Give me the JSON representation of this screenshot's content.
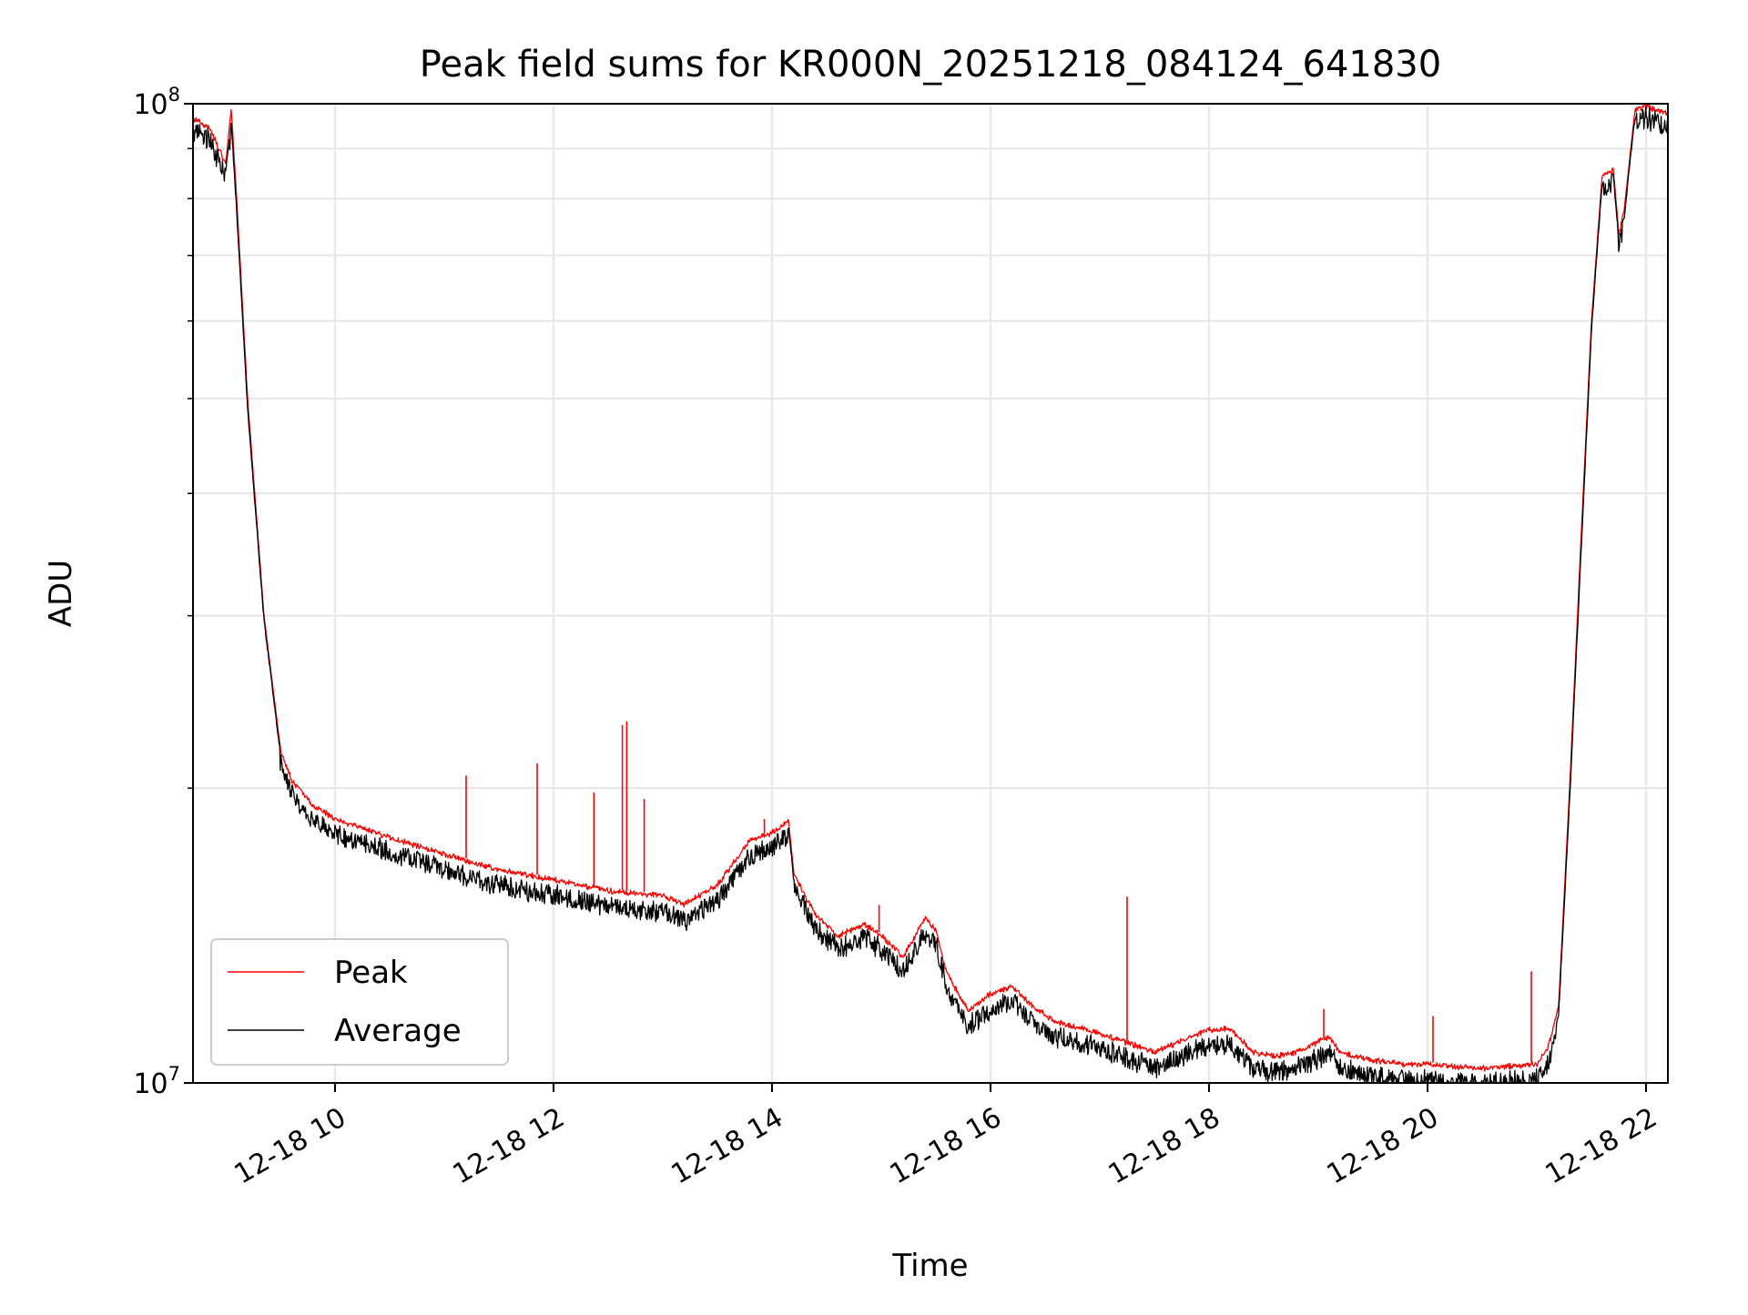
{
  "chart_data": {
    "type": "line",
    "title": "Peak field sums for KR000N_20251218_084124_641830",
    "xlabel": "Time",
    "ylabel": "ADU",
    "y_scale": "log",
    "ylim": [
      10000000,
      100000000
    ],
    "xlim_hours": [
      8.7,
      22.2
    ],
    "grid": true,
    "legend_position": "lower-left",
    "x_ticks": [
      {
        "hour": 10,
        "label": "12-18 10"
      },
      {
        "hour": 12,
        "label": "12-18 12"
      },
      {
        "hour": 14,
        "label": "12-18 14"
      },
      {
        "hour": 16,
        "label": "12-18 16"
      },
      {
        "hour": 18,
        "label": "12-18 18"
      },
      {
        "hour": 20,
        "label": "12-18 20"
      },
      {
        "hour": 22,
        "label": "12-18 22"
      }
    ],
    "y_ticks": [
      {
        "value": 10000000,
        "base": "10",
        "exp": "7"
      },
      {
        "value": 100000000,
        "base": "10",
        "exp": "8"
      }
    ],
    "y_minor_ticks": [
      20000000,
      30000000,
      40000000,
      50000000,
      60000000,
      70000000,
      80000000,
      90000000
    ],
    "series": [
      {
        "name": "Peak",
        "color": "#ff0000",
        "x": [
          8.7,
          8.85,
          9.0,
          9.05,
          9.1,
          9.2,
          9.35,
          9.5,
          9.6,
          9.8,
          10.0,
          10.5,
          11.0,
          11.5,
          12.0,
          12.5,
          13.0,
          13.2,
          13.5,
          13.8,
          14.0,
          14.15,
          14.2,
          14.4,
          14.6,
          14.85,
          15.0,
          15.2,
          15.4,
          15.5,
          15.6,
          15.8,
          16.0,
          16.2,
          16.4,
          16.6,
          17.0,
          17.5,
          18.0,
          18.2,
          18.4,
          18.6,
          18.8,
          19.1,
          19.2,
          19.5,
          19.8,
          20.0,
          20.5,
          21.0,
          21.1,
          21.2,
          21.3,
          21.4,
          21.5,
          21.6,
          21.7,
          21.75,
          21.8,
          21.9,
          22.0,
          22.2
        ],
        "values": [
          97000000,
          95000000,
          87000000,
          99000000,
          80000000,
          50000000,
          30000000,
          22000000,
          20500000,
          19300000,
          18700000,
          17900000,
          17200000,
          16600000,
          16200000,
          15800000,
          15600000,
          15300000,
          16000000,
          17800000,
          18100000,
          18600000,
          16400000,
          14900000,
          14200000,
          14600000,
          14200000,
          13500000,
          14800000,
          14400000,
          13000000,
          11900000,
          12400000,
          12600000,
          12000000,
          11600000,
          11300000,
          10800000,
          11400000,
          11400000,
          10800000,
          10700000,
          10800000,
          11200000,
          10800000,
          10600000,
          10500000,
          10500000,
          10400000,
          10500000,
          10900000,
          12000000,
          20000000,
          35000000,
          60000000,
          85000000,
          86000000,
          74000000,
          78000000,
          99000000,
          100000000,
          98000000
        ]
      },
      {
        "name": "Average",
        "color": "#000000",
        "x": [
          8.7,
          8.85,
          9.0,
          9.05,
          9.1,
          9.2,
          9.35,
          9.5,
          9.6,
          9.8,
          10.0,
          10.5,
          11.0,
          11.5,
          12.0,
          12.5,
          13.0,
          13.2,
          13.5,
          13.8,
          14.0,
          14.15,
          14.2,
          14.4,
          14.6,
          14.85,
          15.0,
          15.2,
          15.4,
          15.5,
          15.6,
          15.8,
          16.0,
          16.2,
          16.4,
          16.6,
          17.0,
          17.5,
          18.0,
          18.2,
          18.4,
          18.6,
          18.8,
          19.1,
          19.2,
          19.5,
          19.8,
          20.0,
          20.5,
          21.0,
          21.1,
          21.2,
          21.3,
          21.4,
          21.5,
          21.6,
          21.7,
          21.75,
          21.8,
          21.9,
          22.0,
          22.2
        ],
        "values": [
          96000000,
          94000000,
          86000000,
          96000000,
          78000000,
          49000000,
          29800000,
          21800000,
          20300000,
          19000000,
          18400000,
          17600000,
          16900000,
          16300000,
          15900000,
          15500000,
          15300000,
          15000000,
          15700000,
          17500000,
          17800000,
          18300000,
          16200000,
          14700000,
          14000000,
          14400000,
          14000000,
          13300000,
          14600000,
          14200000,
          12800000,
          11700000,
          12200000,
          12400000,
          11800000,
          11400000,
          11100000,
          10600000,
          11200000,
          11200000,
          10600000,
          10500000,
          10600000,
          11000000,
          10600000,
          10400000,
          10300000,
          10300000,
          10200000,
          10300000,
          10700000,
          11800000,
          19500000,
          34000000,
          59000000,
          84000000,
          85000000,
          73000000,
          77000000,
          98000000,
          99000000,
          97000000
        ]
      }
    ],
    "spikes": [
      {
        "hour": 11.2,
        "value": 20600000
      },
      {
        "hour": 11.85,
        "value": 21200000
      },
      {
        "hour": 12.37,
        "value": 19800000
      },
      {
        "hour": 12.63,
        "value": 23200000
      },
      {
        "hour": 12.67,
        "value": 23400000
      },
      {
        "hour": 12.83,
        "value": 19500000
      },
      {
        "hour": 13.93,
        "value": 18600000
      },
      {
        "hour": 14.98,
        "value": 15200000
      },
      {
        "hour": 17.25,
        "value": 15500000
      },
      {
        "hour": 19.05,
        "value": 11900000
      },
      {
        "hour": 20.05,
        "value": 11700000
      },
      {
        "hour": 20.95,
        "value": 13000000
      }
    ]
  },
  "legend": {
    "items": [
      {
        "label": "Peak",
        "color": "#ff0000"
      },
      {
        "label": "Average",
        "color": "#000000"
      }
    ]
  }
}
